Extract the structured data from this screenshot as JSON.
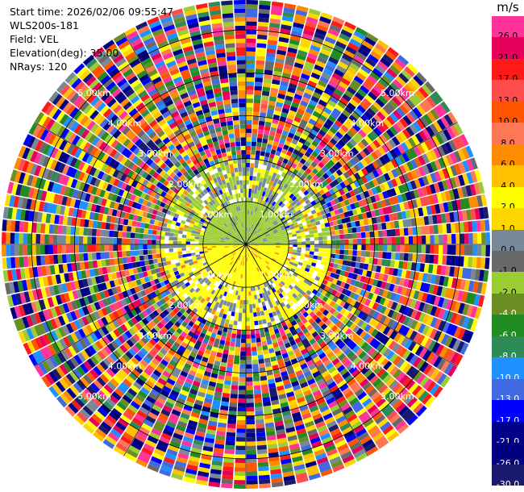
{
  "info": {
    "start_time": "Start time: 2026/02/06 09:55:47",
    "station": "WLS200s-181",
    "field": "Field: VEL",
    "elevation": "Elevation(deg): 35.00",
    "nrays": "NRays: 120"
  },
  "chart_data": {
    "type": "ppi",
    "field": "VEL",
    "elevation_deg": 35.0,
    "n_rays": 120,
    "range_max_km": 5.7,
    "range_ring_labels": [
      "1.00km",
      "2.00km",
      "3.00km",
      "4.00km",
      "5.00km"
    ],
    "colorbar": {
      "unit": "m/s",
      "levels": [
        {
          "label": "26.0",
          "color": "#ff3399"
        },
        {
          "label": "21.0",
          "color": "#e6005c"
        },
        {
          "label": "17.0",
          "color": "#ff1a1a"
        },
        {
          "label": "13.0",
          "color": "#ff4d4d"
        },
        {
          "label": "10.0",
          "color": "#ff5500"
        },
        {
          "label": "8.0",
          "color": "#ff7755"
        },
        {
          "label": "6.0",
          "color": "#ff8c00"
        },
        {
          "label": "4.0",
          "color": "#ffc000"
        },
        {
          "label": "2.0",
          "color": "#ffff00"
        },
        {
          "label": "1.0",
          "color": "#ffd700"
        },
        {
          "label": "0.0",
          "color": "#778899"
        },
        {
          "label": "-1.0",
          "color": "#696969"
        },
        {
          "label": "-2.0",
          "color": "#9acd32"
        },
        {
          "label": "-4.0",
          "color": "#6b8e23"
        },
        {
          "label": "-6.0",
          "color": "#228b22"
        },
        {
          "label": "-8.0",
          "color": "#2e8b57"
        },
        {
          "label": "-10.0",
          "color": "#1e90ff"
        },
        {
          "label": "-13.0",
          "color": "#4169e1"
        },
        {
          "label": "-17.0",
          "color": "#0000ff"
        },
        {
          "label": "-21.0",
          "color": "#00008b"
        },
        {
          "label": "-26.0",
          "color": "#000080"
        },
        {
          "label": "-30.0",
          "color": "#191970"
        }
      ]
    },
    "inner_pattern": {
      "north_cap_color": "#9acd32",
      "south_cap_color": "#ffff00",
      "mid_ring_colors": [
        "#ffff00",
        "#9acd32",
        "#778899",
        "#ff8c00",
        "#0000ff"
      ]
    }
  }
}
